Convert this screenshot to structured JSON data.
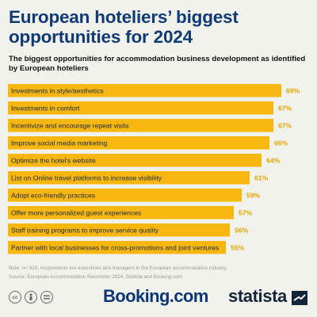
{
  "header": {
    "title": "European hoteliers’ biggest opportunities for 2024",
    "subtitle": "The biggest opportunities for accommodation business development as identified by European hoteliers"
  },
  "chart_data": {
    "type": "bar",
    "orientation": "horizontal",
    "categories": [
      "Investments in style/aesthetics",
      "Investments in comfort",
      "Incentivize and encourage repeat visits",
      "Improve social media marketing",
      "Optimize the hotel's website",
      "List on Online travel platforms to increase visibility",
      "Adopt eco-friendly practices",
      "Offer more personalized guest experiences",
      "Staff training programs to improve service quality",
      "Partner with local businesses for cross-promotions and joint ventures"
    ],
    "values": [
      69,
      67,
      67,
      66,
      64,
      61,
      59,
      57,
      56,
      55
    ],
    "value_labels": [
      "69%",
      "67%",
      "67%",
      "66%",
      "64%",
      "61%",
      "59%",
      "57%",
      "56%",
      "55%"
    ],
    "unit": "%",
    "xlim": [
      0,
      69
    ],
    "bar_color": "#f7b70f",
    "value_color": "#e0a600",
    "grid": false
  },
  "footnotes": {
    "note": "Note: n= 920; respondents are executives and managers in the European accommodation industry",
    "source": "Source: European Accommodation Barometer 2024, Statista and Booking.com"
  },
  "footer": {
    "license_icons": [
      "cc-icon",
      "attribution-icon",
      "no-derivatives-icon"
    ],
    "booking_logo": "Booking.com",
    "statista_logo": "statista"
  },
  "colors": {
    "background": "#f2f2ec",
    "title": "#103a73",
    "bar": "#f7b70f"
  }
}
